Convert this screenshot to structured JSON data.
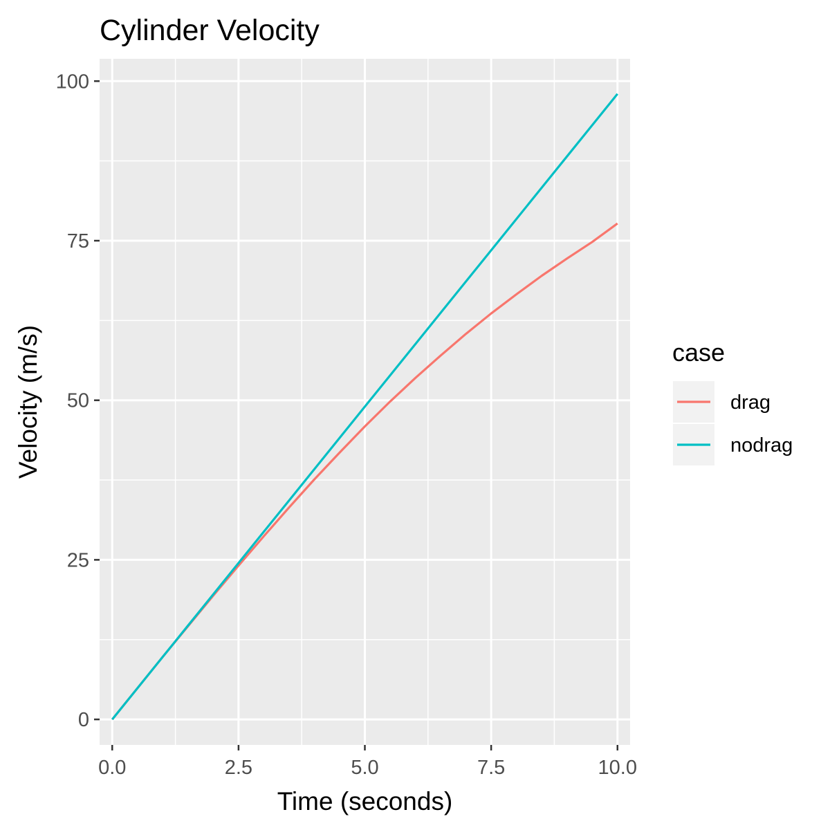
{
  "chart_data": {
    "type": "line",
    "title": "Cylinder Velocity",
    "xlabel": "Time (seconds)",
    "ylabel": "Velocity (m/s)",
    "xlim": [
      -0.25,
      10.25
    ],
    "ylim": [
      -4.0,
      103.5
    ],
    "x_ticks": [
      0,
      2.5,
      5,
      7.5,
      10
    ],
    "x_tick_labels": [
      "0.0",
      "2.5",
      "5.0",
      "7.5",
      "10.0"
    ],
    "x_minor_ticks": [
      1.25,
      3.75,
      6.25,
      8.75
    ],
    "y_ticks": [
      0,
      25,
      50,
      75,
      100
    ],
    "y_tick_labels": [
      "0",
      "25",
      "50",
      "75",
      "100"
    ],
    "y_minor_ticks": [
      12.5,
      37.5,
      62.5,
      87.5
    ],
    "grid": true,
    "panel_background": "#ebebeb",
    "grid_color": "#ffffff",
    "legend": {
      "title": "case",
      "placement": "right",
      "key_background": "#f2f2f2"
    },
    "series": [
      {
        "name": "drag",
        "color": "#f8766d",
        "x": [
          0,
          0.5,
          1,
          1.5,
          2,
          2.5,
          3,
          3.5,
          4,
          4.5,
          5,
          5.5,
          6,
          6.5,
          7,
          7.5,
          8,
          8.5,
          9,
          9.5,
          10
        ],
        "y": [
          0,
          4.9,
          9.8,
          14.6,
          19.4,
          24.1,
          28.7,
          33.2,
          37.6,
          41.8,
          45.9,
          49.8,
          53.5,
          57.0,
          60.4,
          63.6,
          66.6,
          69.5,
          72.2,
          74.8,
          77.7
        ]
      },
      {
        "name": "nodrag",
        "color": "#00bfc4",
        "x": [
          0,
          0.5,
          1,
          1.5,
          2,
          2.5,
          3,
          3.5,
          4,
          4.5,
          5,
          5.5,
          6,
          6.5,
          7,
          7.5,
          8,
          8.5,
          9,
          9.5,
          10
        ],
        "y": [
          0,
          4.9,
          9.8,
          14.7,
          19.6,
          24.5,
          29.4,
          34.3,
          39.2,
          44.1,
          49.0,
          53.9,
          58.8,
          63.7,
          68.6,
          73.5,
          78.4,
          83.3,
          88.2,
          93.1,
          98.0
        ]
      }
    ]
  }
}
